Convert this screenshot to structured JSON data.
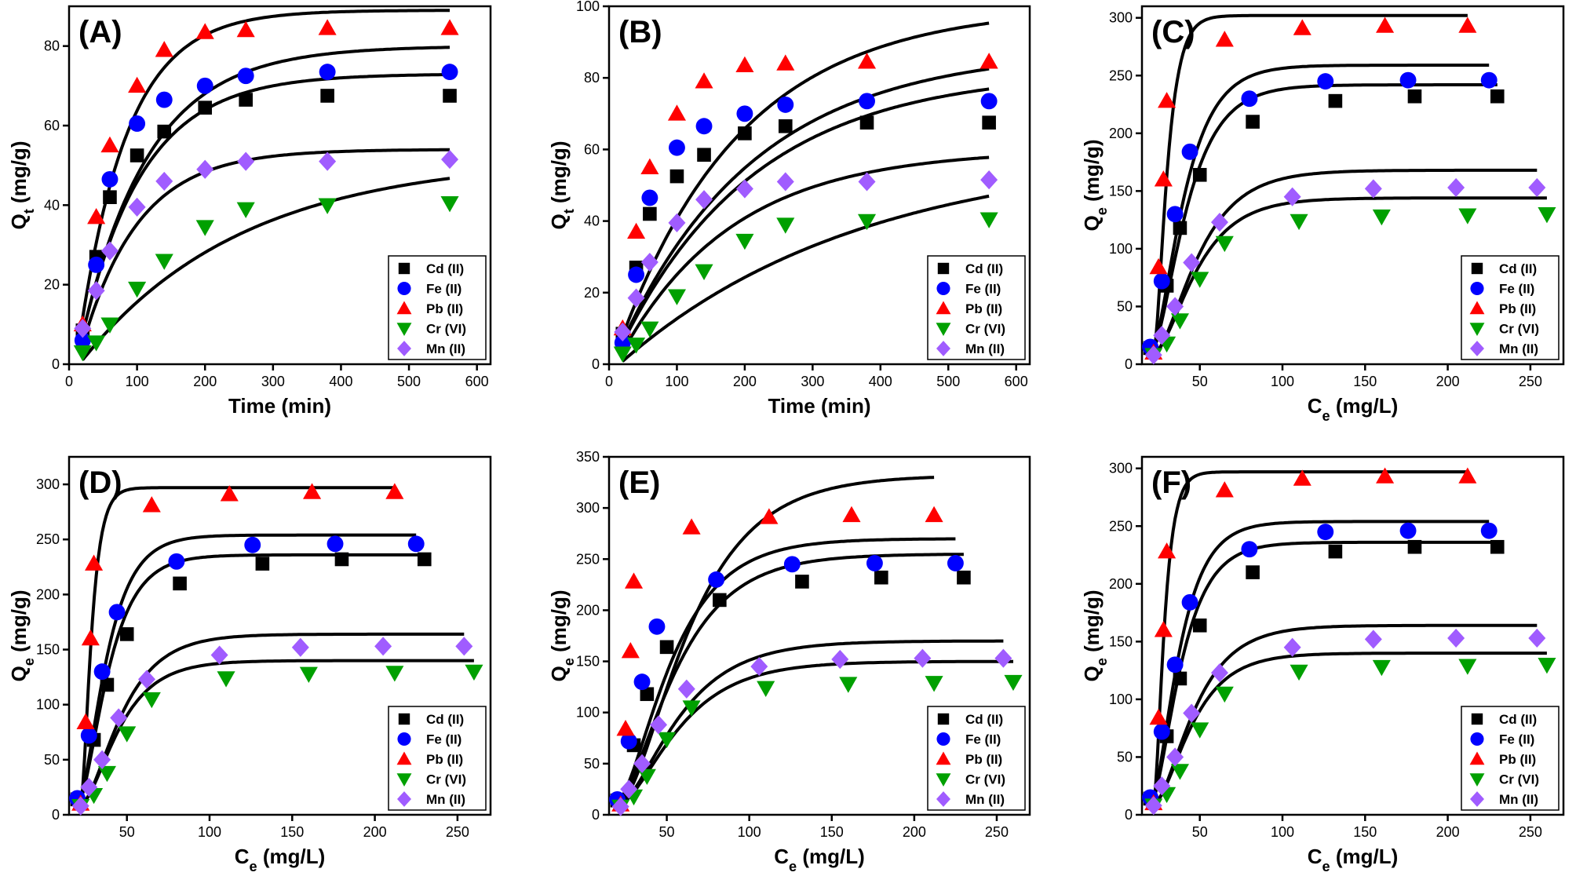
{
  "chart_data": [
    {
      "panel": "(A)",
      "type": "scatter",
      "xlabel": "Time (min)",
      "ylabel_main": "Q",
      "ylabel_sub": "t",
      "ylabel_unit": " (mg/g)",
      "xlim": [
        0,
        620
      ],
      "ylim": [
        0,
        90
      ],
      "xticks": [
        0,
        100,
        200,
        300,
        400,
        500,
        600
      ],
      "yticks": [
        0,
        20,
        40,
        60,
        80
      ],
      "x": [
        20,
        40,
        60,
        100,
        140,
        200,
        260,
        380,
        560
      ],
      "fit": {
        "model": "exp",
        "xrange": [
          20,
          560
        ]
      },
      "series": [
        {
          "name": "Cd (II)",
          "values": [
            8.5,
            27,
            42,
            52.5,
            58.5,
            64.5,
            66.5,
            67.5,
            67.5
          ],
          "fit_params": [
            73,
            0.011,
            10
          ]
        },
        {
          "name": "Fe (II)",
          "values": [
            6,
            25,
            46.5,
            60.5,
            66.5,
            70,
            72.5,
            73.5,
            73.5
          ],
          "fit_params": [
            80,
            0.01,
            10
          ]
        },
        {
          "name": "Pb (II)",
          "values": [
            10,
            37,
            55,
            70,
            79,
            83.5,
            84,
            84.5,
            84.5
          ],
          "fit_params": [
            89,
            0.014,
            10
          ]
        },
        {
          "name": "Cr (VI)",
          "values": [
            3,
            5.5,
            10,
            19,
            26,
            34.5,
            39,
            40,
            40.5
          ],
          "fit_params": [
            52,
            0.0042,
            15
          ]
        },
        {
          "name": "Mn (II)",
          "values": [
            9,
            18.5,
            28.5,
            39.5,
            46,
            49,
            51,
            51,
            51.5
          ],
          "fit_params": [
            54,
            0.012,
            12
          ]
        }
      ]
    },
    {
      "panel": "(B)",
      "type": "scatter",
      "xlabel": "Time (min)",
      "ylabel_main": "Q",
      "ylabel_sub": "t",
      "ylabel_unit": " (mg/g)",
      "xlim": [
        0,
        620
      ],
      "ylim": [
        0,
        100
      ],
      "xticks": [
        0,
        100,
        200,
        300,
        400,
        500,
        600
      ],
      "yticks": [
        0,
        20,
        40,
        60,
        80,
        100
      ],
      "x": [
        20,
        40,
        60,
        100,
        140,
        200,
        260,
        380,
        560
      ],
      "fit": {
        "model": "exp",
        "xrange": [
          20,
          560
        ]
      },
      "series": [
        {
          "name": "Cd (II)",
          "values": [
            8.5,
            27,
            42,
            52.5,
            58.5,
            64.5,
            66.5,
            67.5,
            67.5
          ],
          "fit_params": [
            82,
            0.005,
            5
          ]
        },
        {
          "name": "Fe (II)",
          "values": [
            6,
            25,
            46.5,
            60.5,
            66.5,
            70,
            72.5,
            73.5,
            73.5
          ],
          "fit_params": [
            88,
            0.005,
            5
          ]
        },
        {
          "name": "Pb (II)",
          "values": [
            10,
            37,
            55,
            70,
            79,
            83.5,
            84,
            84.5,
            84.5
          ],
          "fit_params": [
            100,
            0.0055,
            5
          ]
        },
        {
          "name": "Cr (VI)",
          "values": [
            3,
            5.5,
            10,
            19,
            26,
            34.5,
            39,
            40,
            40.5
          ],
          "fit_params": [
            60,
            0.0028,
            15
          ]
        },
        {
          "name": "Mn (II)",
          "values": [
            9,
            18.5,
            28.5,
            39.5,
            46,
            49,
            51,
            51,
            51.5
          ],
          "fit_params": [
            60,
            0.006,
            10
          ]
        }
      ]
    },
    {
      "panel": "(C)",
      "type": "scatter",
      "xlabel_main": "C",
      "xlabel_sub": "e",
      "xlabel_unit": " (mg/L)",
      "ylabel_main": "Q",
      "ylabel_sub": "e",
      "ylabel_unit": " (mg/g)",
      "xlim": [
        15,
        270
      ],
      "ylim": [
        0,
        310
      ],
      "xticks": [
        50,
        100,
        150,
        200,
        250
      ],
      "yticks": [
        0,
        50,
        100,
        150,
        200,
        250,
        300
      ],
      "fit": {
        "model": "sig"
      },
      "series": [
        {
          "name": "Cd (II)",
          "x": [
            20,
            30,
            38,
            50,
            82,
            132,
            180,
            230
          ],
          "values": [
            14,
            68,
            118,
            164,
            210,
            228,
            232,
            232
          ],
          "fit_params": [
            232,
            0.06,
            20,
            230
          ]
        },
        {
          "name": "Fe (II)",
          "x": [
            20,
            27,
            35,
            44,
            80,
            126,
            176,
            225
          ],
          "values": [
            15,
            72,
            130,
            184,
            230,
            245,
            246,
            246
          ],
          "fit_params": [
            249,
            0.065,
            20,
            225
          ]
        },
        {
          "name": "Pb (II)",
          "x": [
            22,
            25,
            28,
            30,
            65,
            112,
            162,
            212
          ],
          "values": [
            10,
            84,
            160,
            228,
            281,
            291,
            293,
            293
          ],
          "fit_params": [
            292,
            0.16,
            22,
            212
          ]
        },
        {
          "name": "Cr (VI)",
          "x": [
            22,
            30,
            38,
            50,
            65,
            110,
            160,
            212,
            260
          ],
          "values": [
            8,
            18,
            38,
            74,
            105,
            124,
            128,
            129,
            130
          ],
          "fit_params": [
            134,
            0.05,
            22,
            260
          ]
        },
        {
          "name": "Mn (II)",
          "x": [
            22,
            27,
            35,
            45,
            62,
            106,
            155,
            205,
            254
          ],
          "values": [
            8,
            25,
            50,
            88,
            123,
            145,
            152,
            153,
            153
          ],
          "fit_params": [
            158,
            0.048,
            22,
            254
          ]
        }
      ]
    },
    {
      "panel": "(D)",
      "type": "scatter",
      "xlabel_main": "C",
      "xlabel_sub": "e",
      "xlabel_unit": " (mg/L)",
      "ylabel_main": "Q",
      "ylabel_sub": "e",
      "ylabel_unit": " (mg/g)",
      "xlim": [
        15,
        270
      ],
      "ylim": [
        0,
        325
      ],
      "xticks": [
        50,
        100,
        150,
        200,
        250
      ],
      "yticks": [
        0,
        50,
        100,
        150,
        200,
        250,
        300
      ],
      "fit": {
        "model": "sig"
      },
      "series": [
        {
          "name": "Cd (II)",
          "x": [
            20,
            30,
            38,
            50,
            82,
            132,
            180,
            230
          ],
          "values": [
            14,
            68,
            118,
            164,
            210,
            228,
            232,
            232
          ],
          "fit_params": [
            226,
            0.07,
            20,
            230
          ]
        },
        {
          "name": "Fe (II)",
          "x": [
            20,
            27,
            35,
            44,
            80,
            126,
            176,
            225
          ],
          "values": [
            15,
            72,
            130,
            184,
            230,
            245,
            246,
            246
          ],
          "fit_params": [
            244,
            0.075,
            20,
            225
          ]
        },
        {
          "name": "Pb (II)",
          "x": [
            22,
            25,
            28,
            30,
            65,
            112,
            162,
            212
          ],
          "values": [
            10,
            84,
            160,
            228,
            281,
            291,
            293,
            293
          ],
          "fit_params": [
            287,
            0.2,
            22,
            212
          ]
        },
        {
          "name": "Cr (VI)",
          "x": [
            22,
            30,
            38,
            50,
            65,
            110,
            160,
            212,
            260
          ],
          "values": [
            8,
            18,
            38,
            74,
            105,
            124,
            128,
            129,
            130
          ],
          "fit_params": [
            130,
            0.055,
            22,
            260
          ]
        },
        {
          "name": "Mn (II)",
          "x": [
            22,
            27,
            35,
            45,
            62,
            106,
            155,
            205,
            254
          ],
          "values": [
            8,
            25,
            50,
            88,
            123,
            145,
            152,
            153,
            153
          ],
          "fit_params": [
            154,
            0.052,
            22,
            254
          ]
        }
      ]
    },
    {
      "panel": "(E)",
      "type": "scatter",
      "xlabel_main": "C",
      "xlabel_sub": "e",
      "xlabel_unit": " (mg/L)",
      "ylabel_main": "Q",
      "ylabel_sub": "e",
      "ylabel_unit": " (mg/g)",
      "xlim": [
        15,
        270
      ],
      "ylim": [
        0,
        350
      ],
      "xticks": [
        50,
        100,
        150,
        200,
        250
      ],
      "yticks": [
        0,
        50,
        100,
        150,
        200,
        250,
        300,
        350
      ],
      "fit": {
        "model": "sig"
      },
      "series": [
        {
          "name": "Cd (II)",
          "x": [
            20,
            30,
            38,
            50,
            82,
            132,
            180,
            230
          ],
          "values": [
            14,
            68,
            118,
            164,
            210,
            228,
            232,
            232
          ],
          "fit_params": [
            245,
            0.035,
            18,
            230
          ]
        },
        {
          "name": "Fe (II)",
          "x": [
            20,
            27,
            35,
            44,
            80,
            126,
            176,
            225
          ],
          "values": [
            15,
            72,
            130,
            184,
            230,
            245,
            246,
            246
          ],
          "fit_params": [
            260,
            0.038,
            18,
            225
          ]
        },
        {
          "name": "Pb (II)",
          "x": [
            22,
            25,
            28,
            30,
            65,
            112,
            162,
            212
          ],
          "values": [
            10,
            84,
            160,
            228,
            281,
            291,
            293,
            293
          ],
          "fit_params": [
            322,
            0.03,
            20,
            212
          ]
        },
        {
          "name": "Cr (VI)",
          "x": [
            22,
            30,
            38,
            50,
            65,
            110,
            160,
            212,
            260
          ],
          "values": [
            8,
            18,
            38,
            74,
            105,
            124,
            128,
            129,
            130
          ],
          "fit_params": [
            140,
            0.035,
            20,
            260
          ]
        },
        {
          "name": "Mn (II)",
          "x": [
            22,
            27,
            35,
            45,
            62,
            106,
            155,
            205,
            254
          ],
          "values": [
            8,
            25,
            50,
            88,
            123,
            145,
            152,
            153,
            153
          ],
          "fit_params": [
            160,
            0.035,
            20,
            254
          ]
        }
      ]
    },
    {
      "panel": "(F)",
      "type": "scatter",
      "xlabel_main": "C",
      "xlabel_sub": "e",
      "xlabel_unit": " (mg/L)",
      "ylabel_main": "Q",
      "ylabel_sub": "e",
      "ylabel_unit": " (mg/g)",
      "xlim": [
        15,
        270
      ],
      "ylim": [
        0,
        310
      ],
      "xticks": [
        50,
        100,
        150,
        200,
        250
      ],
      "yticks": [
        0,
        50,
        100,
        150,
        200,
        250,
        300
      ],
      "fit": {
        "model": "sig"
      },
      "series": [
        {
          "name": "Cd (II)",
          "x": [
            20,
            30,
            38,
            50,
            82,
            132,
            180,
            230
          ],
          "values": [
            14,
            68,
            118,
            164,
            210,
            228,
            232,
            232
          ],
          "fit_params": [
            226,
            0.07,
            20,
            230
          ]
        },
        {
          "name": "Fe (II)",
          "x": [
            20,
            27,
            35,
            44,
            80,
            126,
            176,
            225
          ],
          "values": [
            15,
            72,
            130,
            184,
            230,
            245,
            246,
            246
          ],
          "fit_params": [
            244,
            0.075,
            20,
            225
          ]
        },
        {
          "name": "Pb (II)",
          "x": [
            22,
            25,
            28,
            30,
            65,
            112,
            162,
            212
          ],
          "values": [
            10,
            84,
            160,
            228,
            281,
            291,
            293,
            293
          ],
          "fit_params": [
            287,
            0.2,
            22,
            212
          ]
        },
        {
          "name": "Cr (VI)",
          "x": [
            22,
            30,
            38,
            50,
            65,
            110,
            160,
            212,
            260
          ],
          "values": [
            8,
            18,
            38,
            74,
            105,
            124,
            128,
            129,
            130
          ],
          "fit_params": [
            130,
            0.055,
            22,
            260
          ]
        },
        {
          "name": "Mn (II)",
          "x": [
            22,
            27,
            35,
            45,
            62,
            106,
            155,
            205,
            254
          ],
          "values": [
            8,
            25,
            50,
            88,
            123,
            145,
            152,
            153,
            153
          ],
          "fit_params": [
            154,
            0.052,
            22,
            254
          ]
        }
      ]
    }
  ],
  "styles": {
    "Cd (II)": {
      "color": "#000000",
      "marker": "square"
    },
    "Fe (II)": {
      "color": "#0000ff",
      "marker": "circle"
    },
    "Pb (II)": {
      "color": "#ff0000",
      "marker": "triangle-up"
    },
    "Cr (VI)": {
      "color": "#00a000",
      "marker": "triangle-down"
    },
    "Mn (II)": {
      "color": "#a05cff",
      "marker": "diamond"
    }
  }
}
